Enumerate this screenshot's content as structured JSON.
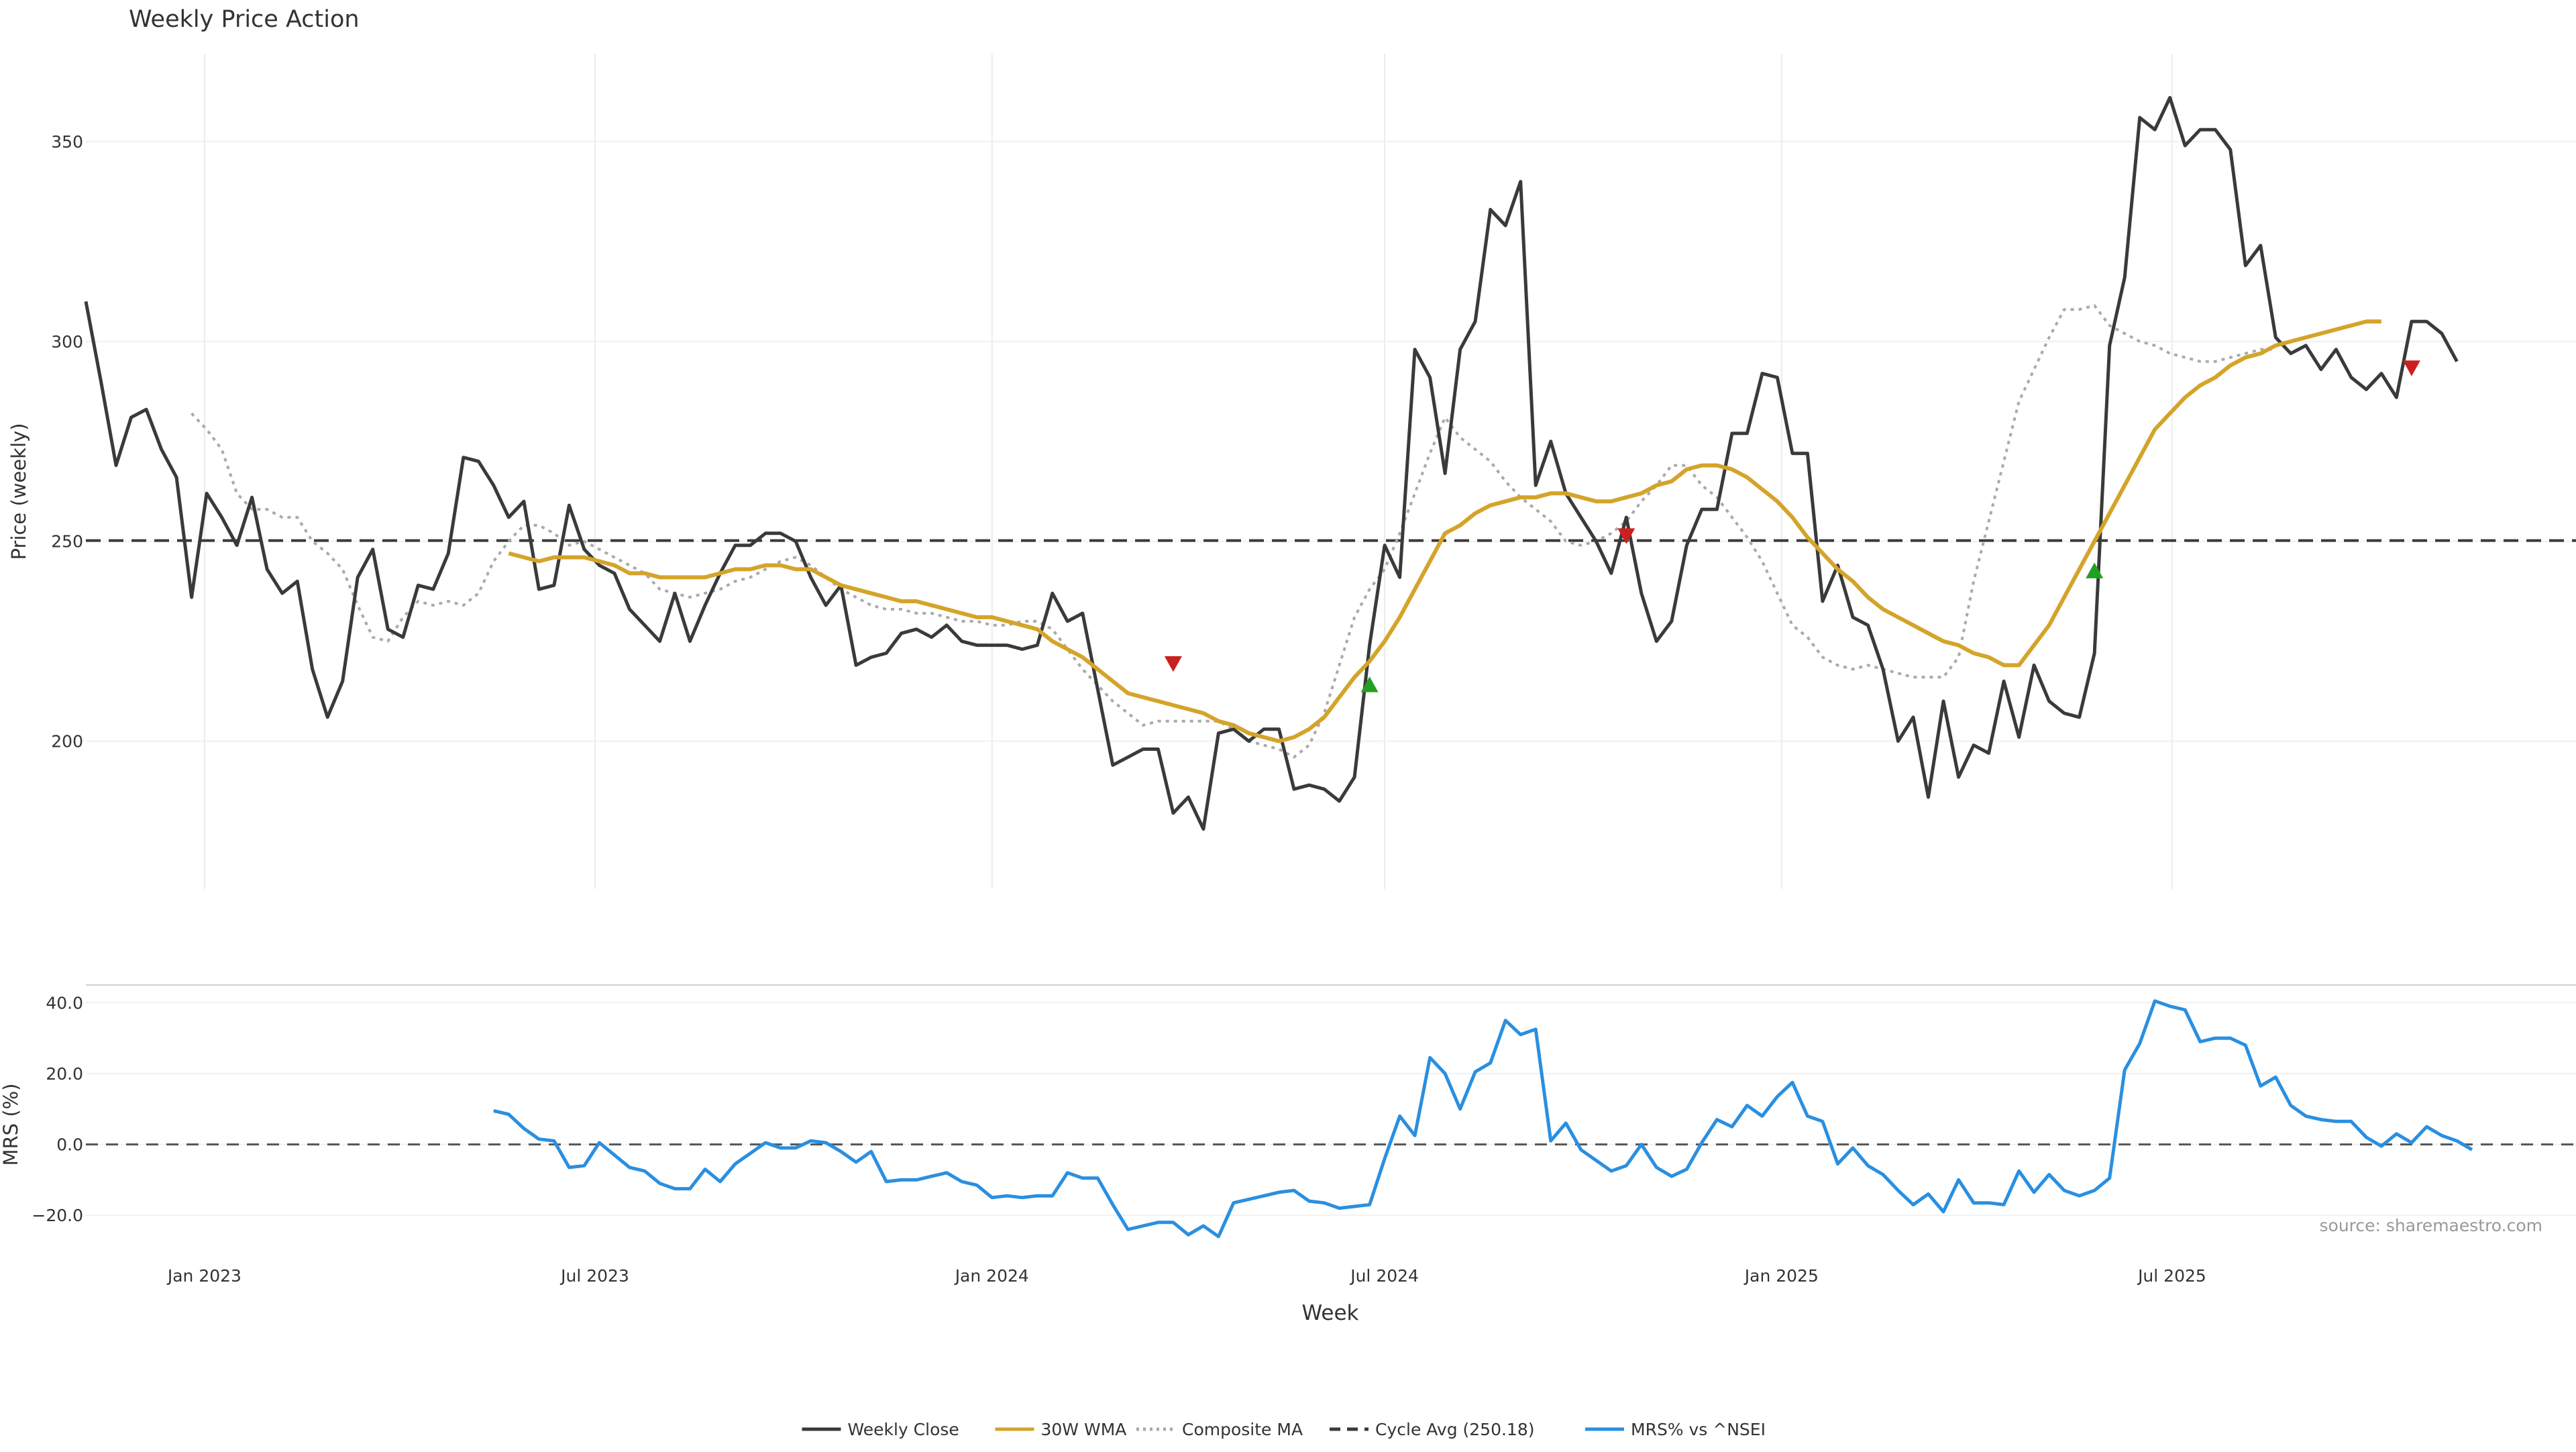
{
  "chart_data": [
    {
      "type": "line",
      "title": "Weekly Price Action",
      "xlabel": "",
      "ylabel": "Price (weekly)",
      "ylim": [
        163,
        372
      ],
      "yticks": [
        200,
        250,
        300,
        350
      ],
      "xlim": [
        "2022-11-07",
        "2025-12-01"
      ],
      "grid": true,
      "series": [
        {
          "name": "Weekly Close",
          "color": "#3a3a3a",
          "start": "2022-11-07",
          "step_days": 7,
          "values": [
            310,
            290,
            269,
            281,
            283,
            273,
            266,
            236,
            262,
            256,
            249,
            261,
            243,
            237,
            240,
            218,
            206,
            215,
            241,
            248,
            228,
            226,
            239,
            238,
            247,
            271,
            270,
            264,
            256,
            260,
            238,
            239,
            259,
            248,
            244,
            242,
            233,
            229,
            225,
            237,
            225,
            234,
            242,
            249,
            249,
            252,
            252,
            250,
            241,
            234,
            239,
            219,
            221,
            222,
            227,
            228,
            226,
            229,
            225,
            224,
            224,
            224,
            223,
            224,
            237,
            230,
            232,
            213,
            194,
            196,
            198,
            198,
            182,
            186,
            178,
            202,
            203,
            200,
            203,
            203,
            188,
            189,
            188,
            185,
            191,
            224,
            249,
            241,
            298,
            291,
            267,
            298,
            305,
            333,
            329,
            340,
            264,
            275,
            262,
            256,
            250,
            242,
            256,
            237,
            225,
            230,
            249,
            258,
            258,
            277,
            277,
            292,
            291,
            272,
            272,
            235,
            244,
            231,
            229,
            218,
            200,
            206,
            186,
            210,
            191,
            199,
            197,
            215,
            201,
            219,
            210,
            207,
            206,
            222,
            299,
            316,
            356,
            353,
            361,
            349,
            353,
            353,
            348,
            319,
            324,
            301,
            297,
            299,
            293,
            298,
            291,
            288,
            292,
            286,
            305,
            305,
            302,
            295
          ]
        },
        {
          "name": "30W WMA",
          "color": "#d4a42a",
          "start": "2023-05-22",
          "step_days": 7,
          "values": [
            247,
            246,
            245,
            246,
            246,
            246,
            245,
            244,
            242,
            242,
            241,
            241,
            241,
            241,
            242,
            243,
            243,
            244,
            244,
            243,
            243,
            241,
            239,
            238,
            237,
            236,
            235,
            235,
            234,
            233,
            232,
            231,
            231,
            230,
            229,
            228,
            225,
            223,
            221,
            218,
            215,
            212,
            211,
            210,
            209,
            208,
            207,
            205,
            204,
            202,
            201,
            200,
            201,
            203,
            206,
            211,
            216,
            220,
            225,
            231,
            238,
            245,
            252,
            254,
            257,
            259,
            260,
            261,
            261,
            262,
            262,
            261,
            260,
            260,
            261,
            262,
            264,
            265,
            268,
            269,
            269,
            268,
            266,
            263,
            260,
            256,
            251,
            247,
            243,
            240,
            236,
            233,
            231,
            229,
            227,
            225,
            224,
            222,
            221,
            219,
            219,
            224,
            229,
            236,
            243,
            250,
            257,
            264,
            271,
            278,
            282,
            286,
            289,
            291,
            294,
            296,
            297,
            299,
            300,
            301,
            302,
            303,
            304,
            305,
            305
          ]
        },
        {
          "name": "Composite MA",
          "color": "#aaaaaa",
          "start": "2022-12-26",
          "step_days": 7,
          "values": [
            282,
            278,
            273,
            262,
            258,
            258,
            256,
            256,
            250,
            247,
            243,
            234,
            226,
            225,
            231,
            235,
            234,
            235,
            234,
            237,
            245,
            250,
            254,
            254,
            252,
            249,
            250,
            248,
            246,
            244,
            242,
            238,
            237,
            236,
            237,
            238,
            240,
            241,
            243,
            245,
            246,
            244,
            241,
            238,
            236,
            234,
            233,
            233,
            232,
            232,
            231,
            230,
            230,
            229,
            229,
            230,
            230,
            228,
            223,
            218,
            214,
            210,
            207,
            204,
            205,
            205,
            205,
            205,
            205,
            203,
            200,
            199,
            198,
            196,
            199,
            207,
            219,
            231,
            238,
            243,
            252,
            262,
            272,
            281,
            276,
            273,
            270,
            265,
            261,
            258,
            255,
            250,
            249,
            250,
            252,
            255,
            260,
            264,
            269,
            269,
            264,
            261,
            256,
            251,
            245,
            237,
            229,
            226,
            221,
            219,
            218,
            219,
            218,
            217,
            216,
            216,
            216,
            221,
            240,
            255,
            270,
            285,
            293,
            301,
            308,
            308,
            309,
            304,
            302,
            300,
            299,
            297,
            296,
            295,
            295,
            296,
            297,
            298,
            298
          ]
        },
        {
          "name": "Cycle Avg (250.18)",
          "color": "#3a3a3a",
          "value": 250.18
        }
      ],
      "markers": [
        {
          "type": "sell",
          "date": "2024-03-25",
          "value": 219.5,
          "color": "#cc1f1f"
        },
        {
          "type": "buy",
          "date": "2024-06-24",
          "value": 214,
          "color": "#22a022"
        },
        {
          "type": "sell",
          "date": "2024-10-21",
          "value": 251.5,
          "color": "#cc1f1f"
        },
        {
          "type": "buy",
          "date": "2025-05-26",
          "value": 242.5,
          "color": "#22a022"
        },
        {
          "type": "sell",
          "date": "2025-10-20",
          "value": 293.5,
          "color": "#cc1f1f"
        }
      ]
    },
    {
      "type": "line",
      "title": "",
      "xlabel": "Week",
      "ylabel": "MRS (%)",
      "ylim": [
        -30,
        45
      ],
      "yticks": [
        -20,
        0,
        20,
        40
      ],
      "ytick_labels": [
        "−20.0",
        "0.0",
        "20.0",
        "40.0"
      ],
      "xlim": [
        "2022-11-07",
        "2025-12-01"
      ],
      "xticks": [
        "2023-01-01",
        "2023-07-01",
        "2024-01-01",
        "2024-07-01",
        "2025-01-01",
        "2025-07-01"
      ],
      "xtick_labels": [
        "Jan 2023",
        "Jul 2023",
        "Jan 2024",
        "Jul 2024",
        "Jan 2025",
        "Jul 2025"
      ],
      "grid": true,
      "zero_line": 0,
      "annotation": "source: sharemaestro.com",
      "series": [
        {
          "name": "MRS% vs ^NSEI",
          "color": "#2a8fe0",
          "start": "2023-05-15",
          "step_days": 7,
          "values": [
            9.5,
            8.5,
            4.5,
            1.5,
            1,
            -6.5,
            -6,
            0.5,
            -3,
            -6.5,
            -7.5,
            -11,
            -12.5,
            -12.5,
            -7,
            -10.5,
            -5.5,
            -2.5,
            0.5,
            -1,
            -1,
            1,
            0.5,
            -2,
            -5,
            -2,
            -10.5,
            -10,
            -10,
            -9,
            -8,
            -10.5,
            -11.5,
            -15,
            -14.5,
            -15,
            -14.5,
            -14.5,
            -8,
            -9.5,
            -9.5,
            -17,
            -24,
            -23,
            -22,
            -22,
            -25.5,
            -23,
            -26,
            -16.5,
            -15.5,
            -14.5,
            -13.5,
            -13,
            -16,
            -16.5,
            -18,
            -17.5,
            -17,
            -4,
            8,
            2.5,
            24.5,
            20,
            10,
            20.5,
            23,
            35,
            31,
            32.5,
            1,
            6,
            -1.5,
            -4.5,
            -7.5,
            -6,
            0,
            -6.5,
            -9,
            -7,
            0.5,
            7,
            5,
            11,
            8,
            13.5,
            17.5,
            8,
            6.5,
            -5.5,
            -1,
            -6,
            -8.5,
            -13,
            -17,
            -14,
            -19,
            -10,
            -16.5,
            -16.5,
            -17,
            -7.5,
            -13.5,
            -8.5,
            -13,
            -14.5,
            -13,
            -9.5,
            21,
            28.5,
            40.5,
            39,
            38,
            29,
            30,
            30,
            28,
            16.5,
            19,
            11,
            8,
            7,
            6.5,
            6.5,
            2,
            -0.5,
            3,
            0.5,
            5,
            2.5,
            1,
            -1.5
          ]
        }
      ]
    }
  ],
  "legend": [
    {
      "label": "Weekly Close",
      "color": "#3a3a3a",
      "style": "solid"
    },
    {
      "label": "30W WMA",
      "color": "#d4a42a",
      "style": "solid"
    },
    {
      "label": "Composite MA",
      "color": "#aaaaaa",
      "style": "dotted"
    },
    {
      "label": "Cycle Avg (250.18)",
      "color": "#3a3a3a",
      "style": "dashed"
    },
    {
      "label": "MRS% vs ^NSEI",
      "color": "#2a8fe0",
      "style": "solid"
    }
  ]
}
